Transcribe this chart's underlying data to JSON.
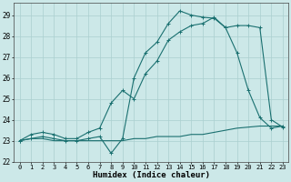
{
  "xlabel": "Humidex (Indice chaleur)",
  "bg_color": "#cce8e8",
  "grid_color": "#aacfcf",
  "line_color": "#1a7070",
  "xlim_min": -0.5,
  "xlim_max": 23.5,
  "ylim_min": 22.0,
  "ylim_max": 29.6,
  "yticks": [
    22,
    23,
    24,
    25,
    26,
    27,
    28,
    29
  ],
  "xticks": [
    0,
    1,
    2,
    3,
    4,
    5,
    6,
    7,
    8,
    9,
    10,
    11,
    12,
    13,
    14,
    15,
    16,
    17,
    18,
    19,
    20,
    21,
    22,
    23
  ],
  "line1_x": [
    0,
    1,
    2,
    3,
    4,
    5,
    6,
    7,
    8,
    9,
    10,
    11,
    12,
    13,
    14,
    15,
    16,
    17,
    18,
    19,
    20,
    21,
    22,
    23
  ],
  "line1_y": [
    23.0,
    23.1,
    23.1,
    23.0,
    23.0,
    23.0,
    23.0,
    23.0,
    23.0,
    23.0,
    23.1,
    23.1,
    23.2,
    23.2,
    23.2,
    23.3,
    23.3,
    23.4,
    23.5,
    23.6,
    23.65,
    23.7,
    23.7,
    23.7
  ],
  "line2_x": [
    0,
    1,
    2,
    3,
    4,
    5,
    6,
    7,
    8,
    9,
    10,
    11,
    12,
    13,
    14,
    15,
    16,
    17,
    18,
    19,
    20,
    21,
    22,
    23
  ],
  "line2_y": [
    23.0,
    23.3,
    23.4,
    23.3,
    23.1,
    23.1,
    23.4,
    23.6,
    24.8,
    25.4,
    25.0,
    26.2,
    26.8,
    27.8,
    28.2,
    28.5,
    28.6,
    28.9,
    28.4,
    27.2,
    25.4,
    24.1,
    23.6,
    23.7
  ],
  "line3_x": [
    0,
    1,
    2,
    3,
    4,
    5,
    6,
    7,
    8,
    9,
    10,
    11,
    12,
    13,
    14,
    15,
    16,
    17,
    18,
    19,
    20,
    21,
    22,
    23
  ],
  "line3_y": [
    23.0,
    23.1,
    23.2,
    23.1,
    23.0,
    23.0,
    23.1,
    23.2,
    22.4,
    23.1,
    26.0,
    27.2,
    27.7,
    28.6,
    29.2,
    29.0,
    28.9,
    28.85,
    28.4,
    28.5,
    28.5,
    28.4,
    24.0,
    23.65
  ]
}
